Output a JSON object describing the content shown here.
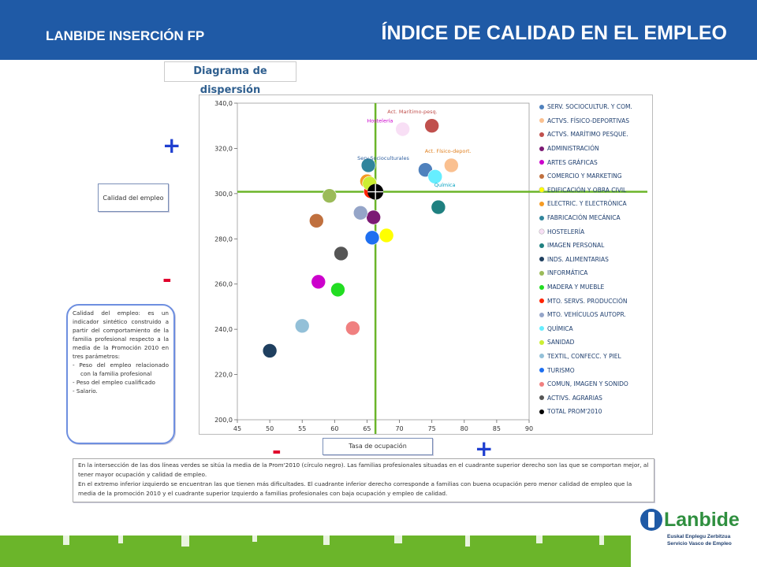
{
  "header": {
    "left": "LANBIDE INSERCIÓN FP",
    "right": "ÍNDICE DE CALIDAD EN EL EMPLEO"
  },
  "colors": {
    "header_bg": "#1f5aa6",
    "guide_line": "#6bb52a",
    "plus": "#1f3fd0",
    "minus": "#e0002a"
  },
  "diagram_title": "Diagrama de dispersión",
  "ylabel": "Calidad del empleo",
  "xlabel": "Tasa de ocupación",
  "signs": {
    "plus": "+",
    "minus": "-"
  },
  "definition": {
    "intro": "Calidad del empleo: es un indicador sintético construido a partir del comportamiento de la familia profesional respecto a la media de la Promoción 2010 en tres parámetros:",
    "items": [
      "Peso del empleo relacionado con la familia profesional",
      "Peso del empleo cualificado",
      "Salario."
    ]
  },
  "info": {
    "line1": "En la intersección de las dos líneas verdes se sitúa la media de la Prom'2010 (círculo negro). Las familias profesionales situadas en el cuadrante superior derecho son las que se comportan mejor, al tener mayor ocupación y calidad de empleo.",
    "line2": "En el extremo inferior izquierdo se encuentran las que tienen más dificultades. El cuadrante inferior derecho corresponde a familias con buena ocupación pero menor calidad de empleo que la media de la promoción 2010 y el cuadrante superior Izquierdo a familias profesionales con baja ocupación y empleo de calidad."
  },
  "logo": {
    "name": "Lanbide",
    "sub1": "Euskal Enplegu Zerbitzua",
    "sub2": "Servicio Vasco de Empleo"
  },
  "chart_data": {
    "type": "scatter",
    "title": "",
    "xlabel": "Tasa de ocupación",
    "ylabel": "Calidad del empleo",
    "xlim": [
      45,
      90
    ],
    "ylim": [
      200,
      340
    ],
    "xticks": [
      "45",
      "50",
      "55",
      "60",
      "65",
      "70",
      "75",
      "80",
      "85",
      "90"
    ],
    "yticks": [
      "200,0",
      "220,0",
      "240,0",
      "260,0",
      "280,0",
      "300,0",
      "320,0",
      "340,0"
    ],
    "mean_lines": {
      "x": 66.3,
      "y": 300.8
    },
    "legend_position": "right",
    "series": [
      {
        "name": "SERV. SOCIOCULTUR. Y COM.",
        "color": "#4f81bd",
        "x": 74.0,
        "y": 310.5
      },
      {
        "name": "ACTVS. FÍSICO-DEPORTIVAS",
        "color": "#fac090",
        "x": 78.0,
        "y": 312.5
      },
      {
        "name": "ACTVS. MARÍTIMO PESQUE.",
        "color": "#c0504d",
        "x": 75.0,
        "y": 330.0
      },
      {
        "name": "ADMINISTRACIÓN",
        "color": "#7b1a74",
        "x": 66.0,
        "y": 289.5
      },
      {
        "name": "ARTES GRÁFICAS",
        "color": "#cc00cc",
        "x": 57.5,
        "y": 261.0
      },
      {
        "name": "COMERCIO Y MARKETING",
        "color": "#c0703e",
        "x": 57.2,
        "y": 288.0
      },
      {
        "name": "EDIFICACIÓN Y OBRA CIVIL",
        "color": "#ffff00",
        "x": 68.0,
        "y": 281.5
      },
      {
        "name": "ELECTRIC. Y ELECTRÓNICA",
        "color": "#f59b24",
        "x": 65.0,
        "y": 305.5
      },
      {
        "name": "FABRICACIÓN MECÁNICA",
        "color": "#31859c",
        "x": 65.2,
        "y": 312.5
      },
      {
        "name": "HOSTELERÍA",
        "color": "#f8dff5",
        "x": 70.5,
        "y": 328.5
      },
      {
        "name": "IMAGEN PERSONAL",
        "color": "#1f8080",
        "x": 76.0,
        "y": 294.0
      },
      {
        "name": "INDS. ALIMENTARIAS",
        "color": "#1f3f5f",
        "x": 50.0,
        "y": 230.5
      },
      {
        "name": "INFORMÁTICA",
        "color": "#9bbb59",
        "x": 59.2,
        "y": 299.0
      },
      {
        "name": "MADERA Y MUEBLE",
        "color": "#22dd22",
        "x": 60.5,
        "y": 257.5
      },
      {
        "name": "MTO. SERVS. PRODUCCIÓN",
        "color": "#ff2200",
        "x": 65.6,
        "y": 301.0
      },
      {
        "name": "MTO. VEHÍCULOS AUTOPR.",
        "color": "#95a5c8",
        "x": 64.0,
        "y": 291.5
      },
      {
        "name": "QUÍMICA",
        "color": "#66eeff",
        "x": 75.5,
        "y": 307.5
      },
      {
        "name": "SANIDAD",
        "color": "#ccee33",
        "x": 65.4,
        "y": 304.5
      },
      {
        "name": "TEXTIL, CONFECC. Y PIEL",
        "color": "#93c0d8",
        "x": 55.0,
        "y": 241.5
      },
      {
        "name": "TURISMO",
        "color": "#1e6ff0",
        "x": 65.8,
        "y": 280.5
      },
      {
        "name": "COMUN, IMAGEN Y SONIDO",
        "color": "#f08080",
        "x": 62.8,
        "y": 240.5
      },
      {
        "name": "ACTIVS. AGRARIAS",
        "color": "#555555",
        "x": 61.0,
        "y": 273.5
      },
      {
        "name": "TOTAL PROM'2010",
        "color": "#000000",
        "x": 66.3,
        "y": 300.8,
        "highlight": true
      }
    ],
    "annotations": [
      {
        "text": "Act. Marítimo-pesq.",
        "color": "#c0504d",
        "x": 72.0,
        "y": 335.5
      },
      {
        "text": "Hostelería",
        "color": "#cc00cc",
        "x": 67.0,
        "y": 331.5
      },
      {
        "text": "Act. Físico-deport.",
        "color": "#e08020",
        "x": 77.5,
        "y": 318.0
      },
      {
        "text": "Serv.Socioculturales",
        "color": "#2f5f9f",
        "x": 67.5,
        "y": 315.0
      },
      {
        "text": "Química",
        "color": "#00a0c0",
        "x": 77.0,
        "y": 303.0
      }
    ]
  }
}
